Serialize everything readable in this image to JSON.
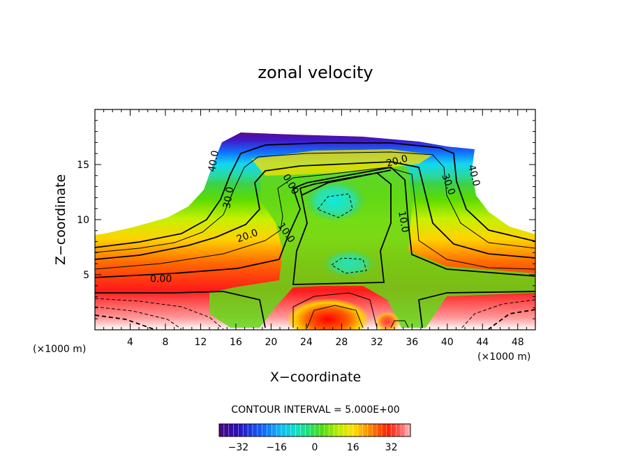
{
  "chart_data": {
    "type": "heatmap",
    "title": "zonal velocity",
    "xlabel": "X−coordinate",
    "ylabel": "Z−coordinate",
    "x_unit_left": "(×1000 m)",
    "x_unit_right": "(×1000 m)",
    "xlim": [
      0,
      50
    ],
    "ylim": [
      0,
      20
    ],
    "x_ticks": [
      4,
      8,
      12,
      16,
      20,
      24,
      28,
      32,
      36,
      40,
      44,
      48
    ],
    "y_ticks": [
      5,
      10,
      15
    ],
    "contour_interval_text": "CONTOUR INTERVAL = 5.000E+00",
    "colorbar": {
      "vmin": -40,
      "vmax": 40,
      "ticks": [
        "−32",
        "−16",
        "0",
        "16",
        "32"
      ],
      "tick_values": [
        -32,
        -16,
        0,
        16,
        32
      ]
    },
    "contour_labels": [
      {
        "text": "40.0",
        "x": 13.5,
        "z": 15.3,
        "rotate": -80
      },
      {
        "text": "30.0",
        "x": 15.2,
        "z": 12.0,
        "rotate": -80
      },
      {
        "text": "20.0",
        "x": 17.3,
        "z": 8.5,
        "rotate": -20
      },
      {
        "text": "10.0",
        "x": 21.7,
        "z": 8.8,
        "rotate": 55
      },
      {
        "text": "0.00",
        "x": 22.2,
        "z": 13.2,
        "rotate": 60
      },
      {
        "text": "20.0",
        "x": 34.3,
        "z": 15.3,
        "rotate": -15
      },
      {
        "text": "10.0",
        "x": 35.0,
        "z": 9.8,
        "rotate": 80
      },
      {
        "text": "30.0",
        "x": 40.1,
        "z": 13.2,
        "rotate": 70
      },
      {
        "text": "40.0",
        "x": 43.0,
        "z": 14.0,
        "rotate": 75
      },
      {
        "text": "0.00",
        "x": 7.5,
        "z": 4.6,
        "rotate": 0
      }
    ]
  }
}
